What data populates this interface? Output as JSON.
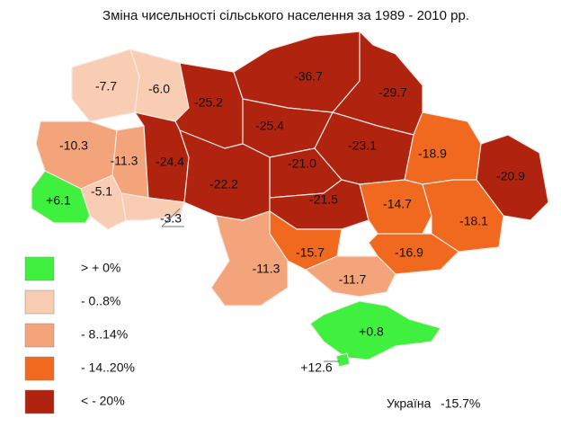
{
  "title": "Зміна чисельності сільського населення за 1989 - 2010 рр.",
  "regions": [
    {
      "value": -7.7,
      "color": "#f9cdb3"
    },
    {
      "value": -6.0,
      "label": "-6.0",
      "color": "#f9cdb3"
    },
    {
      "value": -25.2,
      "color": "#b0230f"
    },
    {
      "value": -36.7,
      "color": "#b0230f"
    },
    {
      "value": -29.7,
      "color": "#b0230f"
    },
    {
      "value": -25.4,
      "color": "#b0230f"
    },
    {
      "value": -10.3,
      "color": "#f3a47b"
    },
    {
      "value": -11.3,
      "color": "#f3a47b"
    },
    {
      "value": -24.4,
      "color": "#b0230f"
    },
    {
      "value": -21.0,
      "label": "-21.0",
      "color": "#b0230f"
    },
    {
      "value": -23.1,
      "color": "#b0230f"
    },
    {
      "value": -18.9,
      "color": "#f0691f"
    },
    {
      "value": -20.9,
      "color": "#b0230f"
    },
    {
      "value": -22.2,
      "color": "#b0230f"
    },
    {
      "value": -5.1,
      "color": "#f9cdb3"
    },
    {
      "value": 6.1,
      "label": "+6.1",
      "color": "#3ff03f"
    },
    {
      "value": -3.3,
      "color": "#f9cdb3"
    },
    {
      "value": -21.5,
      "color": "#b0230f"
    },
    {
      "value": -14.7,
      "color": "#f0691f"
    },
    {
      "value": -18.1,
      "color": "#f0691f"
    },
    {
      "value": -15.7,
      "color": "#f0691f"
    },
    {
      "value": -11.3,
      "color": "#f3a47b"
    },
    {
      "value": -16.9,
      "color": "#f0691f"
    },
    {
      "value": -11.7,
      "color": "#f3a47b"
    },
    {
      "value": 0.8,
      "label": "+0.8",
      "color": "#3ff03f"
    },
    {
      "value": 12.6,
      "label": "+12.6",
      "color": "#3ff03f"
    }
  ],
  "legend": [
    {
      "label": "> + 0%",
      "color": "#3ff03f"
    },
    {
      "label": "- 0..8%",
      "color": "#f9cdb3"
    },
    {
      "label": "- 8..14%",
      "color": "#f3a47b"
    },
    {
      "label": "- 14..20%",
      "color": "#f0691f"
    },
    {
      "label": "< - 20%",
      "color": "#b0230f"
    }
  ],
  "total": {
    "label": "Україна",
    "value": "-15.7%"
  }
}
